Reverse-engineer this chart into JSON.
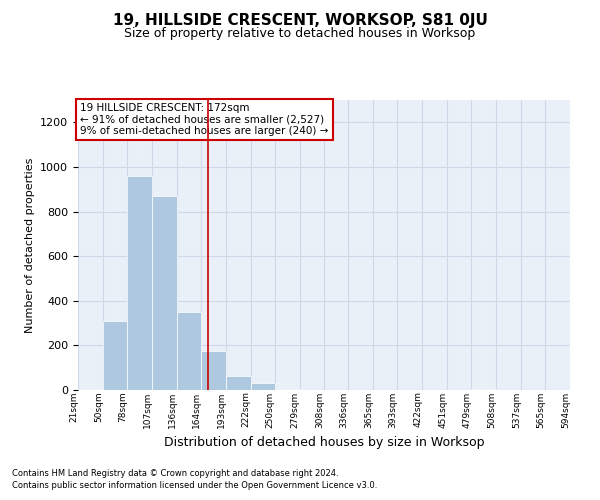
{
  "title": "19, HILLSIDE CRESCENT, WORKSOP, S81 0JU",
  "subtitle": "Size of property relative to detached houses in Worksop",
  "xlabel": "Distribution of detached houses by size in Worksop",
  "ylabel": "Number of detached properties",
  "footnote1": "Contains HM Land Registry data © Crown copyright and database right 2024.",
  "footnote2": "Contains public sector information licensed under the Open Government Licence v3.0.",
  "annotation_line1": "19 HILLSIDE CRESCENT: 172sqm",
  "annotation_line2": "← 91% of detached houses are smaller (2,527)",
  "annotation_line3": "9% of semi-detached houses are larger (240) →",
  "property_size": 172,
  "bar_edges": [
    21,
    50,
    78,
    107,
    136,
    164,
    193,
    222,
    250,
    279,
    308,
    336,
    365,
    393,
    422,
    451,
    479,
    508,
    537,
    565,
    594
  ],
  "bar_heights": [
    5,
    310,
    960,
    870,
    350,
    175,
    65,
    30,
    5,
    0,
    0,
    0,
    0,
    0,
    0,
    0,
    5,
    0,
    0,
    0
  ],
  "bar_color": "#aec8e0",
  "vline_color": "#cc0000",
  "vline_x": 172,
  "grid_color": "#d0d8e8",
  "bg_color": "#eaf0f8",
  "ylim": [
    0,
    1300
  ],
  "yticks": [
    0,
    200,
    400,
    600,
    800,
    1000,
    1200
  ],
  "box_color": "#cc0000",
  "title_fontsize": 11,
  "subtitle_fontsize": 9
}
